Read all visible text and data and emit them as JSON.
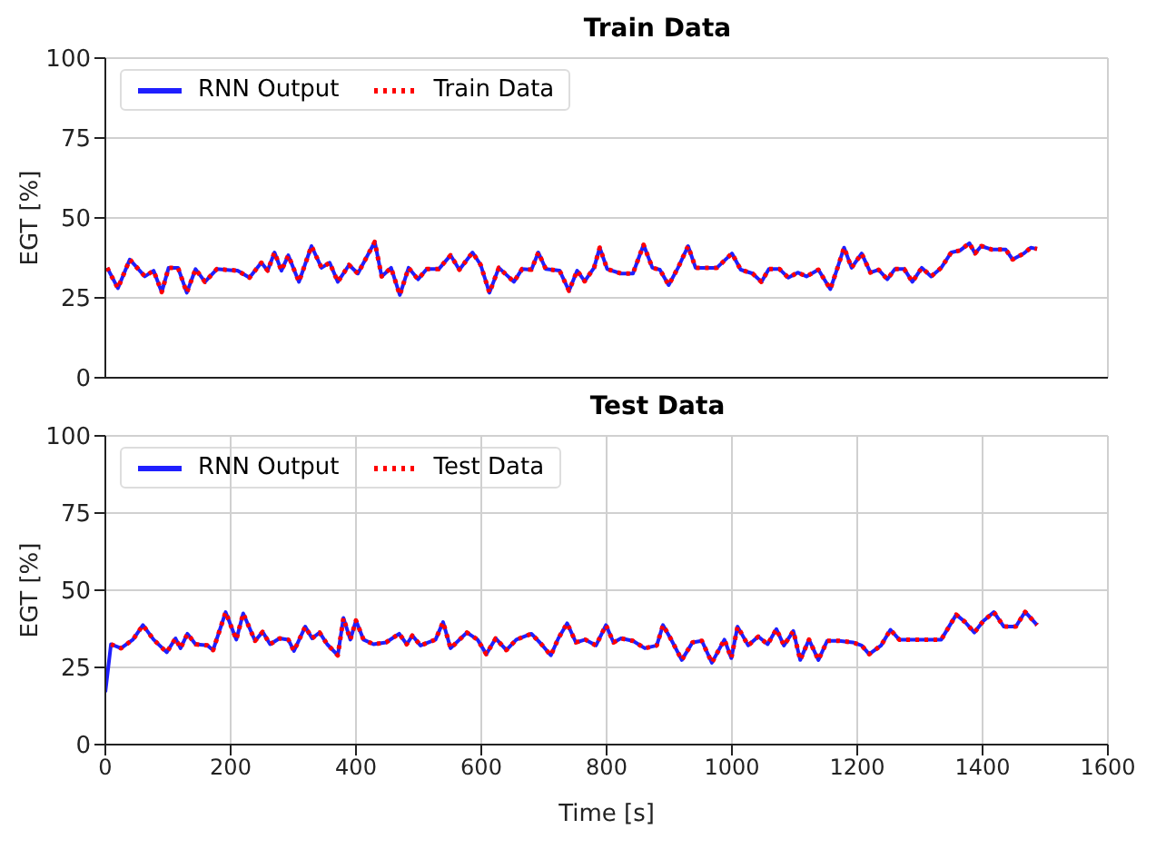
{
  "chart_data": [
    {
      "type": "line",
      "title": "Train Data",
      "ylabel": "EGT [%]",
      "xlim": [
        0,
        1600
      ],
      "xticks": [
        0,
        200,
        400,
        600,
        800,
        1000,
        1200,
        1400,
        1600
      ],
      "ylim": [
        0,
        100
      ],
      "yticks": [
        0,
        25,
        50,
        75,
        100
      ],
      "grid": true,
      "legend": "top left",
      "tick_labels": "y",
      "series": [
        {
          "name": "RNN Output",
          "color": "#1f1fff",
          "line_style": "solid",
          "x": [
            3,
            20,
            39,
            63,
            77,
            90,
            101,
            116,
            130,
            144,
            159,
            178,
            211,
            230,
            249,
            259,
            270,
            281,
            292,
            309,
            329,
            345,
            358,
            371,
            389,
            403,
            430,
            441,
            456,
            470,
            484,
            499,
            513,
            532,
            551,
            565,
            586,
            599,
            613,
            628,
            652,
            665,
            680,
            691,
            703,
            725,
            740,
            753,
            765,
            780,
            789,
            801,
            823,
            842,
            859,
            873,
            885,
            899,
            914,
            930,
            942,
            976,
            1000,
            1014,
            1033,
            1047,
            1059,
            1076,
            1090,
            1105,
            1119,
            1138,
            1157,
            1167,
            1179,
            1191,
            1207,
            1221,
            1234,
            1248,
            1260,
            1275,
            1288,
            1303,
            1318,
            1334,
            1350,
            1364,
            1379,
            1388,
            1398,
            1415,
            1437,
            1448,
            1466,
            1477,
            1487
          ],
          "values": [
            34.4,
            28,
            37,
            31.7,
            33.5,
            26.8,
            34.4,
            34.4,
            26.6,
            34,
            30,
            34,
            33.5,
            31.3,
            36,
            33.5,
            39.2,
            33.5,
            38.3,
            30,
            41.2,
            34.4,
            36,
            30,
            35.3,
            32.6,
            42.5,
            31.7,
            34.4,
            25.9,
            34.4,
            30.8,
            34,
            34,
            38.3,
            33.8,
            39.2,
            35.3,
            26.6,
            34.4,
            30,
            34,
            33.8,
            39.2,
            34,
            33.5,
            27.2,
            33.5,
            30.2,
            34.4,
            40.7,
            34,
            32.6,
            32.6,
            41.6,
            34.4,
            33.8,
            29,
            34.4,
            41.2,
            34.4,
            34.4,
            38.9,
            33.8,
            32.6,
            30,
            34,
            34,
            31.3,
            32.9,
            31.7,
            33.8,
            27.7,
            33.5,
            40.7,
            34.4,
            38.9,
            32.9,
            33.8,
            30.8,
            34,
            34,
            30,
            34.4,
            31.7,
            34.4,
            39.2,
            39.8,
            42.1,
            38.9,
            41.2,
            40.1,
            40.1,
            37,
            38.9,
            40.7,
            40.3
          ]
        },
        {
          "name": "Train Data",
          "color": "#ff0000",
          "line_style": "dotted",
          "x": [
            3,
            20,
            39,
            63,
            77,
            90,
            101,
            116,
            130,
            144,
            159,
            178,
            211,
            230,
            249,
            259,
            270,
            281,
            292,
            309,
            329,
            345,
            358,
            371,
            389,
            403,
            430,
            441,
            456,
            470,
            484,
            499,
            513,
            532,
            551,
            565,
            586,
            599,
            613,
            628,
            652,
            665,
            680,
            691,
            703,
            725,
            740,
            753,
            765,
            780,
            789,
            801,
            823,
            842,
            859,
            873,
            885,
            899,
            914,
            930,
            942,
            976,
            1000,
            1014,
            1033,
            1047,
            1059,
            1076,
            1090,
            1105,
            1119,
            1138,
            1157,
            1167,
            1179,
            1191,
            1207,
            1221,
            1234,
            1248,
            1260,
            1275,
            1288,
            1303,
            1318,
            1334,
            1350,
            1364,
            1379,
            1388,
            1398,
            1415,
            1437,
            1448,
            1466,
            1477,
            1487
          ],
          "values": [
            34.4,
            28,
            37,
            31.7,
            33.5,
            26.8,
            34.4,
            34.4,
            26.6,
            34,
            30,
            34,
            33.5,
            31.3,
            36,
            33.5,
            39.2,
            33.5,
            38.3,
            30,
            41.2,
            34.4,
            36,
            30,
            35.3,
            32.6,
            42.5,
            31.7,
            34.4,
            25.9,
            34.4,
            30.8,
            34,
            34,
            38.3,
            33.8,
            39.2,
            35.3,
            26.6,
            34.4,
            30,
            34,
            33.8,
            39.2,
            34,
            33.5,
            27.2,
            33.5,
            30.2,
            34.4,
            40.7,
            34,
            32.6,
            32.6,
            41.6,
            34.4,
            33.8,
            29,
            34.4,
            41.2,
            34.4,
            34.4,
            38.9,
            33.8,
            32.6,
            30,
            34,
            34,
            31.3,
            32.9,
            31.7,
            33.8,
            27.7,
            33.5,
            40.7,
            34.4,
            38.9,
            32.9,
            33.8,
            30.8,
            34,
            34,
            30,
            34.4,
            31.7,
            34.4,
            39.2,
            39.8,
            42.1,
            38.9,
            41.2,
            40.1,
            40.1,
            37,
            38.9,
            40.7,
            40.3
          ]
        }
      ]
    },
    {
      "type": "line",
      "title": "Test Data",
      "xlabel": "Time [s]",
      "ylabel": "EGT [%]",
      "xlim": [
        0,
        1600
      ],
      "xticks": [
        0,
        200,
        400,
        600,
        800,
        1000,
        1200,
        1400,
        1600
      ],
      "ylim": [
        0,
        100
      ],
      "yticks": [
        0,
        25,
        50,
        75,
        100
      ],
      "grid": true,
      "legend": "top left",
      "series": [
        {
          "name": "RNN Output",
          "color": "#1f1fff",
          "line_style": "solid",
          "x": [
            0,
            9,
            25,
            44,
            60,
            77,
            98,
            112,
            120,
            131,
            144,
            163,
            172,
            192,
            209,
            220,
            239,
            251,
            263,
            278,
            292,
            301,
            319,
            330,
            342,
            354,
            371,
            380,
            391,
            400,
            412,
            428,
            448,
            469,
            481,
            490,
            503,
            527,
            539,
            551,
            577,
            594,
            608,
            623,
            640,
            656,
            680,
            696,
            711,
            723,
            737,
            751,
            766,
            783,
            799,
            811,
            823,
            842,
            861,
            880,
            890,
            902,
            920,
            937,
            952,
            968,
            988,
            999,
            1009,
            1026,
            1042,
            1057,
            1071,
            1083,
            1098,
            1109,
            1123,
            1138,
            1152,
            1171,
            1193,
            1207,
            1219,
            1238,
            1253,
            1267,
            1301,
            1334,
            1358,
            1372,
            1387,
            1401,
            1418,
            1434,
            1453,
            1468,
            1487
          ],
          "values": [
            17,
            32.5,
            31.2,
            34,
            38.7,
            34,
            29.9,
            34.4,
            31.2,
            35.9,
            32.5,
            32.1,
            30.6,
            42.9,
            34,
            42.5,
            33.6,
            36.5,
            32.5,
            34.4,
            34,
            30.3,
            38.2,
            34.4,
            36.3,
            32.5,
            28.9,
            41,
            34,
            40.2,
            34,
            32.5,
            33.1,
            35.9,
            32.5,
            35.3,
            32.1,
            34,
            39.7,
            31.2,
            36.3,
            34,
            29.3,
            34.4,
            30.6,
            34,
            35.9,
            32.5,
            28.9,
            34.4,
            39.3,
            33.1,
            34,
            32.1,
            38.7,
            33.1,
            34.4,
            33.6,
            31.2,
            32.1,
            38.7,
            34.4,
            27.4,
            33.1,
            33.6,
            26.5,
            34,
            28,
            38.2,
            32.1,
            35,
            32.5,
            37.4,
            32.1,
            36.8,
            27.4,
            34,
            27.4,
            33.6,
            33.6,
            33.1,
            32.1,
            29.3,
            32.1,
            37.2,
            34,
            34,
            34,
            42.1,
            39.7,
            36.3,
            40,
            42.9,
            38.2,
            38.2,
            43,
            38.7
          ]
        },
        {
          "name": "Test Data",
          "color": "#ff0000",
          "line_style": "dotted",
          "x": [
            9,
            25,
            44,
            60,
            77,
            98,
            112,
            120,
            131,
            144,
            163,
            172,
            192,
            209,
            220,
            239,
            251,
            263,
            278,
            292,
            301,
            319,
            330,
            342,
            354,
            371,
            380,
            391,
            400,
            412,
            428,
            448,
            469,
            481,
            490,
            503,
            527,
            539,
            551,
            577,
            594,
            608,
            623,
            640,
            656,
            680,
            696,
            711,
            723,
            737,
            751,
            766,
            783,
            799,
            811,
            823,
            842,
            861,
            880,
            890,
            902,
            920,
            937,
            952,
            968,
            988,
            999,
            1009,
            1026,
            1042,
            1057,
            1071,
            1083,
            1098,
            1109,
            1123,
            1138,
            1152,
            1171,
            1193,
            1207,
            1219,
            1238,
            1253,
            1267,
            1301,
            1334,
            1358,
            1372,
            1387,
            1401,
            1418,
            1434,
            1453,
            1468,
            1487
          ],
          "values": [
            32.5,
            31.2,
            34,
            38.7,
            34,
            29.9,
            34.4,
            31.2,
            35.9,
            32.5,
            32.1,
            30.6,
            42.9,
            34,
            42.5,
            33.6,
            36.5,
            32.5,
            34.4,
            34,
            30.3,
            38.2,
            34.4,
            36.3,
            32.5,
            28.9,
            41,
            34,
            40.2,
            34,
            32.5,
            33.1,
            35.9,
            32.5,
            35.3,
            32.1,
            34,
            39.7,
            31.2,
            36.3,
            34,
            29.3,
            34.4,
            30.6,
            34,
            35.9,
            32.5,
            28.9,
            34.4,
            39.3,
            33.1,
            34,
            32.1,
            38.7,
            33.1,
            34.4,
            33.6,
            31.2,
            32.1,
            38.7,
            34.4,
            27.4,
            33.1,
            33.6,
            26.5,
            34,
            28,
            38.2,
            32.1,
            35,
            32.5,
            37.4,
            32.1,
            36.8,
            27.4,
            34,
            27.4,
            33.6,
            33.6,
            33.1,
            32.1,
            29.3,
            32.1,
            37.2,
            34,
            34,
            34,
            42.1,
            39.7,
            36.3,
            40,
            42.9,
            38.2,
            38.2,
            43,
            38.7
          ]
        }
      ]
    }
  ]
}
